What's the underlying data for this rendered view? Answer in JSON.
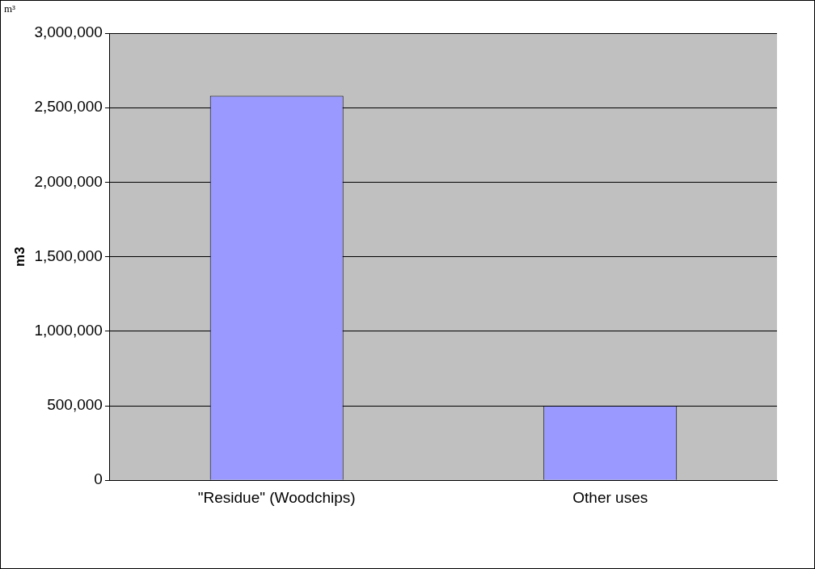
{
  "chart_data": {
    "type": "bar",
    "ylabel": "m3",
    "annotations": [
      "m³"
    ],
    "categories": [
      "\"Residue\" (Woodchips)",
      "Other uses"
    ],
    "values": [
      2580000,
      500000
    ],
    "color": "#9999ff",
    "ylim": [
      0,
      3000000
    ],
    "yticks": [
      {
        "value": 0,
        "label": "0"
      },
      {
        "value": 500000,
        "label": "500,000"
      },
      {
        "value": 1000000,
        "label": "1,000,000"
      },
      {
        "value": 1500000,
        "label": "1,500,000"
      },
      {
        "value": 2000000,
        "label": "2,000,000"
      },
      {
        "value": 2500000,
        "label": "2,500,000"
      },
      {
        "value": 3000000,
        "label": "3,000,000"
      }
    ],
    "grid": "y"
  }
}
